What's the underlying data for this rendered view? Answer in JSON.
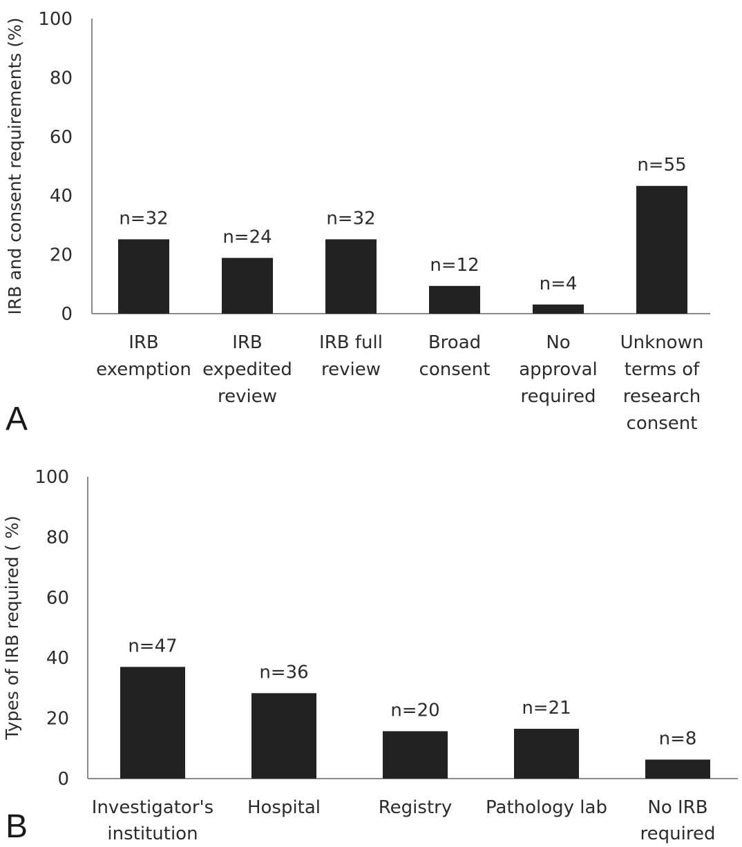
{
  "chart_data": [
    {
      "type": "bar",
      "panel_label": "A",
      "ylabel": "IRB and consent requirements (%)",
      "xlabel": "",
      "ylim": [
        0,
        100
      ],
      "yticks": [
        "0",
        "20",
        "40",
        "60",
        "80",
        "100"
      ],
      "grid": false,
      "categories": [
        "IRB exemption",
        "IRB expedited review",
        "IRB full review",
        "Broad consent",
        "No approval required",
        "Unknown terms of research consent"
      ],
      "category_lines": [
        [
          "IRB",
          "exemption"
        ],
        [
          "IRB",
          "expedited",
          "review"
        ],
        [
          "IRB full",
          "review"
        ],
        [
          "Broad",
          "consent"
        ],
        [
          "No",
          "approval",
          "required"
        ],
        [
          "Unknown",
          "terms of",
          "research",
          "consent"
        ]
      ],
      "values": [
        25.2,
        18.9,
        25.2,
        9.4,
        3.1,
        43.3
      ],
      "data_labels": [
        "n=32",
        "n=24",
        "n=32",
        "n=12",
        "n=4",
        "n=55"
      ]
    },
    {
      "type": "bar",
      "panel_label": "B",
      "ylabel": "Types of IRB required ( %)",
      "xlabel": "",
      "ylim": [
        0,
        100
      ],
      "yticks": [
        "0",
        "20",
        "40",
        "60",
        "80",
        "100"
      ],
      "grid": false,
      "categories": [
        "Investigator's institution",
        "Hospital",
        "Registry",
        "Pathology lab",
        "No IRB required"
      ],
      "category_lines": [
        [
          "Investigator's",
          "institution"
        ],
        [
          "Hospital"
        ],
        [
          "Registry"
        ],
        [
          "Pathology lab"
        ],
        [
          "No IRB",
          "required"
        ]
      ],
      "values": [
        37.0,
        28.3,
        15.7,
        16.5,
        6.3
      ],
      "data_labels": [
        "n=47",
        "n=36",
        "n=20",
        "n=21",
        "n=8"
      ]
    }
  ]
}
